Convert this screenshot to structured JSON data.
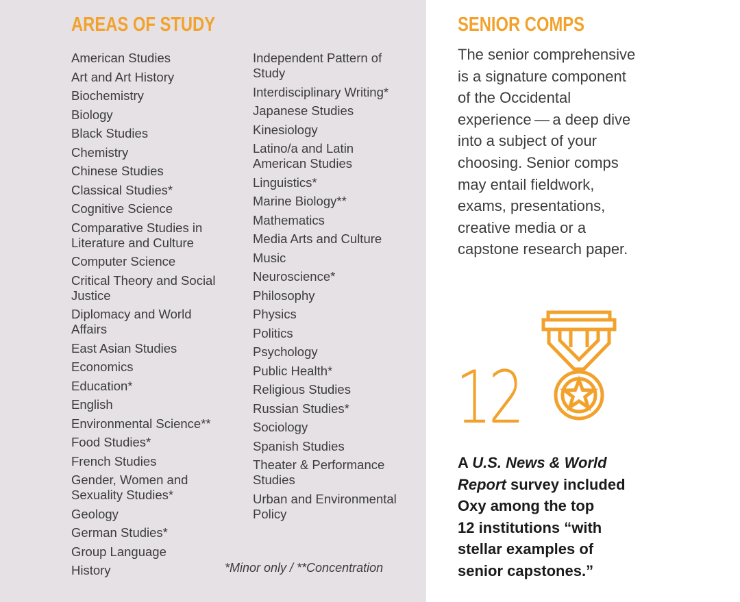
{
  "areas": {
    "heading": "AREAS OF STUDY",
    "column1": [
      [
        "American Studies"
      ],
      [
        "Art and Art History"
      ],
      [
        "Biochemistry"
      ],
      [
        "Biology"
      ],
      [
        "Black Studies"
      ],
      [
        "Chemistry"
      ],
      [
        "Chinese Studies"
      ],
      [
        "Classical Studies*"
      ],
      [
        "Cognitive Science"
      ],
      [
        "Comparative Studies in",
        "Literature and Culture"
      ],
      [
        "Computer Science"
      ],
      [
        "Critical Theory and Social",
        "Justice"
      ],
      [
        "Diplomacy and World",
        "Affairs"
      ],
      [
        "East Asian Studies"
      ],
      [
        "Economics"
      ],
      [
        "Education*"
      ],
      [
        "English"
      ],
      [
        "Environmental Science**"
      ],
      [
        "Food Studies*"
      ],
      [
        "French Studies"
      ],
      [
        "Gender, Women and",
        "Sexuality Studies*"
      ],
      [
        "Geology"
      ],
      [
        "German Studies*"
      ],
      [
        "Group Language"
      ],
      [
        "History"
      ]
    ],
    "column2": [
      [
        "Independent Pattern of",
        "Study"
      ],
      [
        "Interdisciplinary Writing*"
      ],
      [
        "Japanese Studies"
      ],
      [
        "Kinesiology"
      ],
      [
        "Latino/a and Latin",
        "American Studies"
      ],
      [
        "Linguistics*"
      ],
      [
        "Marine Biology**"
      ],
      [
        "Mathematics"
      ],
      [
        "Media Arts and Culture"
      ],
      [
        "Music"
      ],
      [
        "Neuroscience*"
      ],
      [
        "Philosophy"
      ],
      [
        "Physics"
      ],
      [
        "Politics"
      ],
      [
        "Psychology"
      ],
      [
        "Public Health*"
      ],
      [
        "Religious Studies"
      ],
      [
        "Russian Studies*"
      ],
      [
        "Sociology"
      ],
      [
        "Spanish Studies"
      ],
      [
        "Theater & Performance",
        "Studies"
      ],
      [
        "Urban and Environmental",
        "Policy"
      ]
    ],
    "footnote": "*Minor only / **Concentration"
  },
  "comps": {
    "heading": "SENIOR COMPS",
    "lines": [
      "The senior comprehensive",
      "is a signature component",
      "of the Occidental",
      "experience — a deep dive",
      "into a subject of your",
      "choosing. Senior comps",
      "may entail fieldwork,",
      "exams, presentations,",
      "creative media or a",
      "capstone research paper."
    ]
  },
  "stat": {
    "number": "12",
    "icon": "medal-icon",
    "quote_line1_prefix": "A ",
    "quote_line1_italic": "U.S. News & World",
    "quote_line2_italic": "Report",
    "quote_line2_rest": " survey included",
    "quote_line3": "Oxy among the top",
    "quote_line4": "12 institutions “with",
    "quote_line5": "stellar examples of",
    "quote_line6": "senior capstones.”"
  },
  "colors": {
    "accent": "#f2a22c",
    "panel": "#e5e1e4",
    "body_text": "#3c3c3c",
    "quote_text": "#1b1b1b"
  }
}
